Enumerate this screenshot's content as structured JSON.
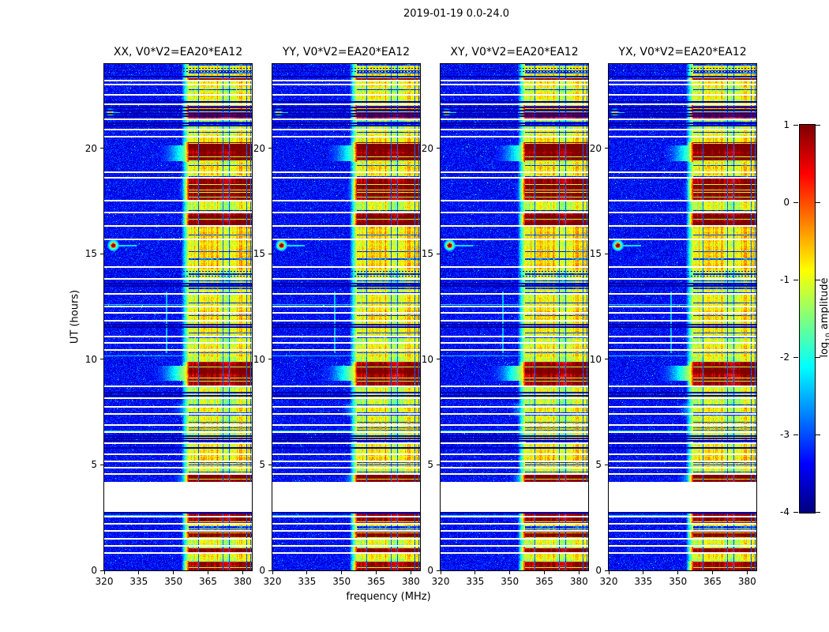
{
  "figure": {
    "title": "2019-01-19 0.0-24.0",
    "xlabel": "frequency (MHz)",
    "ylabel": "UT (hours)",
    "colorbar_label_prefix": "log",
    "colorbar_label_sub": "10",
    "colorbar_label_suffix": " amplitude"
  },
  "chart_data": {
    "type": "heatmap",
    "title": "2019-01-19 0.0-24.0",
    "panels": [
      {
        "id": "XX",
        "title": "XX, V0*V2=EA20*EA12"
      },
      {
        "id": "YY",
        "title": "YY, V0*V2=EA20*EA12"
      },
      {
        "id": "XY",
        "title": "XY, V0*V2=EA20*EA12"
      },
      {
        "id": "YX",
        "title": "YX, V0*V2=EA20*EA12"
      }
    ],
    "x_axis": {
      "label": "frequency (MHz)",
      "min": 320,
      "max": 384,
      "ticks": [
        320,
        335,
        350,
        365,
        380
      ]
    },
    "y_axis": {
      "label": "UT (hours)",
      "min": 0,
      "max": 24,
      "ticks": [
        0,
        5,
        10,
        15,
        20
      ]
    },
    "colorbar": {
      "label": "log10 amplitude",
      "min": -4,
      "max": 1,
      "ticks": [
        1,
        0,
        -1,
        -2,
        -3,
        -4
      ],
      "colormap": "jet"
    },
    "features": {
      "background_level": -3.35,
      "noise_sigma": 0.4,
      "rfi_band": {
        "freq_start": 356.5,
        "freq_end": 384,
        "base_level": -1.0
      },
      "data_gaps": [
        [
          2.82,
          4.18
        ]
      ],
      "white_lines": [
        0.82,
        1.16,
        1.5,
        1.87,
        2.2,
        2.54,
        4.56,
        4.86,
        5.16,
        5.5,
        6.02,
        6.54,
        6.88,
        7.4,
        7.74,
        8.15,
        8.71,
        10.43,
        10.77,
        11.1,
        11.85,
        12.19,
        12.49,
        13.12,
        13.83,
        14.39,
        15.7,
        16.34,
        16.97,
        17.53,
        18.62,
        18.88,
        20.56,
        20.9,
        21.38,
        22.09,
        22.54,
        23.03,
        23.21
      ],
      "black_lines": [
        2.72,
        5.79,
        6.13,
        6.25,
        6.36,
        8.27,
        8.42,
        11.52,
        11.64,
        13.47,
        13.58,
        21.08,
        21.2,
        21.52,
        21.65,
        21.78,
        21.95,
        22.22,
        23.4
      ],
      "dotted_lines": [
        13.95,
        14.18,
        23.65,
        23.82
      ],
      "bright_intervals": [
        [
          0.0,
          0.45
        ],
        [
          0.85,
          1.15
        ],
        [
          1.5,
          1.85
        ],
        [
          2.2,
          2.75
        ],
        [
          4.2,
          4.55
        ],
        [
          8.75,
          9.9
        ],
        [
          16.35,
          16.95
        ],
        [
          17.55,
          18.6
        ],
        [
          19.35,
          20.3
        ],
        [
          21.4,
          22.05
        ],
        [
          23.25,
          23.45
        ]
      ],
      "smears": [
        [
          9.0,
          9.7,
          342,
          2.5
        ],
        [
          19.4,
          20.15,
          344,
          2.1
        ],
        [
          7.3,
          7.9,
          350,
          1.4
        ],
        [
          17.6,
          18.4,
          352,
          1.6
        ],
        [
          4.2,
          4.6,
          350,
          1.5
        ]
      ],
      "light_rows": [
        2.62,
        6.62,
        10.2,
        12.62
      ],
      "vertical_streaks": [
        {
          "freq": 347,
          "hour_start": 10.3,
          "hour_end": 13.2,
          "level": -2.45
        }
      ],
      "transients": [
        {
          "hour": 15.42,
          "freq": 323.8,
          "core_level": 0.9,
          "halo_level": -1.5,
          "streak_to_freq": 334
        },
        {
          "hour": 21.7,
          "freq": 322.5,
          "core_level": -0.5,
          "halo_level": -2.3,
          "streak_to_freq": 327
        }
      ]
    }
  }
}
